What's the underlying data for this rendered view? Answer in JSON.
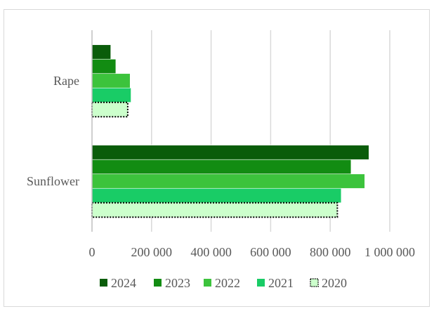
{
  "chart_data": {
    "type": "bar",
    "orientation": "horizontal",
    "categories": [
      "Rape",
      "Sunflower"
    ],
    "series": [
      {
        "name": "2024",
        "values": [
          63000,
          930000
        ],
        "color": "#0a5c0a",
        "border": "solid"
      },
      {
        "name": "2023",
        "values": [
          80000,
          870000
        ],
        "color": "#128c12",
        "border": "solid"
      },
      {
        "name": "2022",
        "values": [
          128000,
          916000
        ],
        "color": "#3cc33c",
        "border": "solid"
      },
      {
        "name": "2021",
        "values": [
          131000,
          837000
        ],
        "color": "#19cc66",
        "border": "solid"
      },
      {
        "name": "2020",
        "values": [
          120000,
          824000
        ],
        "color": "#ccffcc",
        "border": "dotted"
      }
    ],
    "xlim": [
      0,
      1000000
    ],
    "xticks": [
      0,
      200000,
      400000,
      600000,
      800000,
      1000000
    ],
    "xtick_labels": [
      "0",
      "200 000",
      "400 000",
      "600 000",
      "800 000",
      "1 000 000"
    ],
    "grid": true,
    "legend_position": "bottom",
    "title": "",
    "xlabel": "",
    "ylabel": ""
  }
}
